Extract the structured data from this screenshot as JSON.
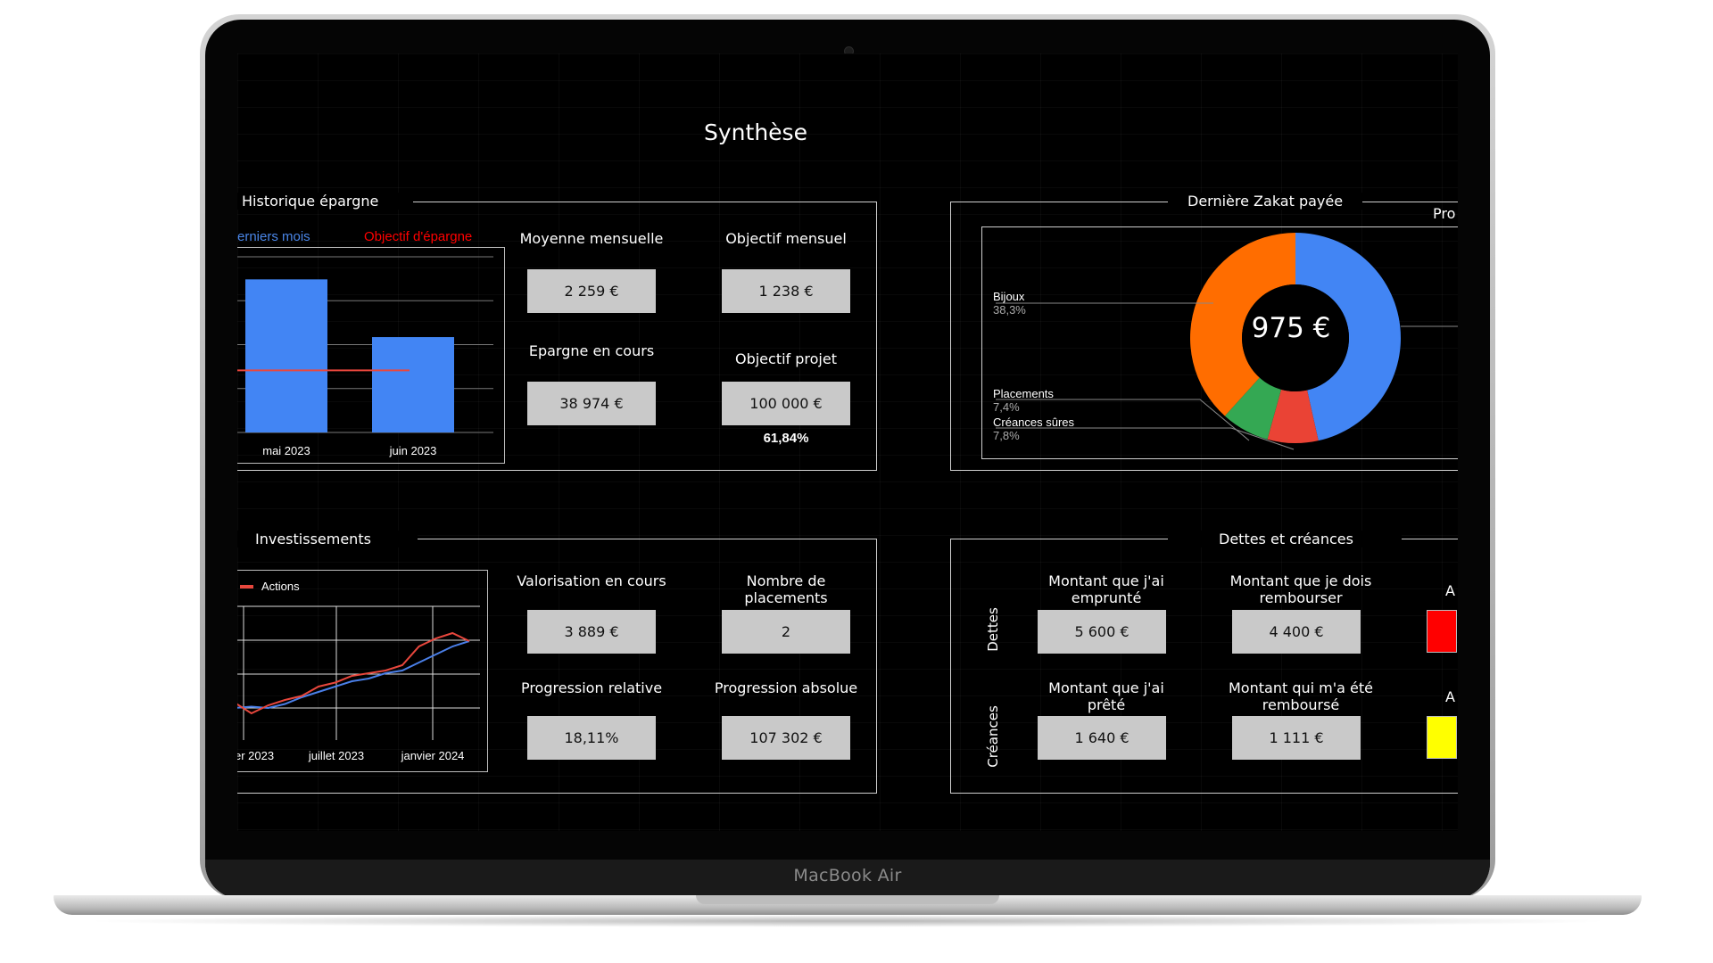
{
  "device": {
    "brand": "MacBook Air"
  },
  "page": {
    "title": "Synthèse"
  },
  "savings": {
    "section_title": "Historique épargne",
    "legend_series": "erniers mois",
    "legend_target": "Objectif d'épargne",
    "stats": [
      {
        "label": "Moyenne mensuelle",
        "value": "2 259 €"
      },
      {
        "label": "Objectif mensuel",
        "value": "1 238 €"
      },
      {
        "label": "Epargne en cours",
        "value": "38 974 €"
      },
      {
        "label": "Objectif projet",
        "value": "100 000 €"
      }
    ],
    "project_progress": "61,84%"
  },
  "zakat": {
    "section_title": "Dernière Zakat payée",
    "right_clip_label": "Pro",
    "total": "975 €",
    "labels": {
      "bijoux": "Bijoux",
      "bijoux_pct": "38,3%",
      "placements": "Placements",
      "placements_pct": "7,4%",
      "creances": "Créances sûres",
      "creances_pct": "7,8%"
    }
  },
  "investments": {
    "section_title": "Investissements",
    "legend": "Actions",
    "stats": [
      {
        "label": "Valorisation en cours",
        "value": "3 889 €"
      },
      {
        "label": "Nombre de placements",
        "value": "2"
      },
      {
        "label": "Progression relative",
        "value": "18,11%"
      },
      {
        "label": "Progression absolue",
        "value": "107 302 €"
      }
    ]
  },
  "debts": {
    "section_title": "Dettes et créances",
    "row_debts": "Dettes",
    "row_claims": "Créances",
    "stats": [
      {
        "label": "Montant que j'ai emprunté",
        "value": "5 600 €"
      },
      {
        "label": "Montant que je dois rembourser",
        "value": "4 400 €"
      },
      {
        "label": "Montant que j'ai prêté",
        "value": "1 640 €"
      },
      {
        "label": "Montant qui m'a été remboursé",
        "value": "1 111 €"
      }
    ],
    "clip_a1": "A",
    "clip_a2": "A",
    "swatch_colors": [
      "#ff0000",
      "#ffff00"
    ]
  },
  "chart_data": [
    {
      "type": "bar",
      "categories": [
        "mai 2023",
        "juin 2023"
      ],
      "series": [
        {
          "name": "erniers mois",
          "values": [
            3050,
            1900
          ]
        },
        {
          "name": "Objectif d'épargne",
          "values": [
            1238,
            1238
          ]
        }
      ],
      "ylim": [
        0,
        3500
      ],
      "grid": true,
      "legend": "top"
    },
    {
      "type": "line",
      "x_tick_labels": [
        "er 2023",
        "juillet 2023",
        "janvier 2024"
      ],
      "series": [
        {
          "name": "Actions",
          "color": "#e8473d",
          "values": [
            3280,
            3200,
            3260,
            3300,
            3330,
            3400,
            3430,
            3480,
            3500,
            3520,
            3560,
            3700,
            3760,
            3800,
            3740
          ]
        },
        {
          "color": "#4a7fe8",
          "values": [
            3240,
            3250,
            3240,
            3270,
            3320,
            3360,
            3400,
            3440,
            3460,
            3500,
            3520,
            3580,
            3640,
            3700,
            3740
          ]
        }
      ],
      "ylim": [
        3000,
        4000
      ],
      "grid": true,
      "legend": "top-left"
    },
    {
      "type": "pie",
      "title": "975 €",
      "labels": [
        "Bijoux",
        "Placements",
        "Créances sûres"
      ],
      "values": [
        38.3,
        7.4,
        7.8
      ],
      "unlabeled_remainder": 46.5,
      "colors": [
        "#ff6d00",
        "#34a853",
        "#ea4335",
        "#4285f4"
      ]
    }
  ]
}
